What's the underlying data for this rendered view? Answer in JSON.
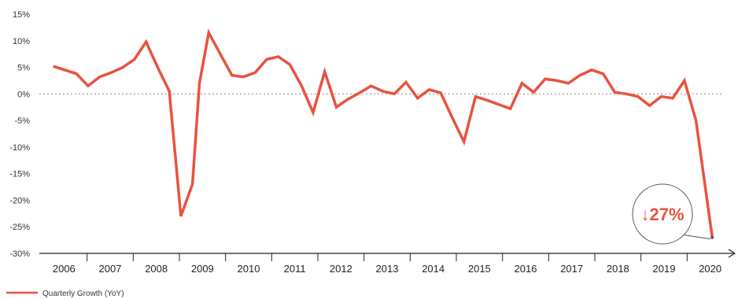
{
  "chart_data": {
    "type": "line",
    "title": "",
    "xlabel": "",
    "ylabel": "",
    "ylim": [
      -30,
      15
    ],
    "y_ticks": [
      15,
      10,
      5,
      0,
      -5,
      -10,
      -15,
      -20,
      -25,
      -30
    ],
    "y_tick_labels": [
      "15%",
      "10%",
      "5%",
      "0%",
      "-5%",
      "-10%",
      "-15%",
      "-20%",
      "-25%",
      "-30%"
    ],
    "x_tick_labels": [
      "2006",
      "2007",
      "2008",
      "2009",
      "2010",
      "2011",
      "2012",
      "2013",
      "2014",
      "2015",
      "2016",
      "2017",
      "2018",
      "2019",
      "2020"
    ],
    "grid": false,
    "zero_line": true,
    "legend_position": "bottom-left",
    "series": [
      {
        "name": "Quarterly Growth (YoY)",
        "color": "#e8533f",
        "points": [
          {
            "x": 2006.0,
            "y": 5.2
          },
          {
            "x": 2006.25,
            "y": 4.5
          },
          {
            "x": 2006.5,
            "y": 3.8
          },
          {
            "x": 2006.75,
            "y": 1.5
          },
          {
            "x": 2007.0,
            "y": 3.2
          },
          {
            "x": 2007.25,
            "y": 4.0
          },
          {
            "x": 2007.5,
            "y": 5.0
          },
          {
            "x": 2007.75,
            "y": 6.5
          },
          {
            "x": 2008.0,
            "y": 9.8
          },
          {
            "x": 2008.25,
            "y": 5.0
          },
          {
            "x": 2008.5,
            "y": 0.5
          },
          {
            "x": 2008.75,
            "y": -23.0
          },
          {
            "x": 2009.0,
            "y": -17.0
          },
          {
            "x": 2009.15,
            "y": 2.0
          },
          {
            "x": 2009.35,
            "y": 11.5
          },
          {
            "x": 2009.6,
            "y": 7.5
          },
          {
            "x": 2009.85,
            "y": 3.5
          },
          {
            "x": 2010.1,
            "y": 3.2
          },
          {
            "x": 2010.35,
            "y": 4.0
          },
          {
            "x": 2010.6,
            "y": 6.5
          },
          {
            "x": 2010.85,
            "y": 7.0
          },
          {
            "x": 2011.1,
            "y": 5.5
          },
          {
            "x": 2011.35,
            "y": 1.5
          },
          {
            "x": 2011.6,
            "y": -3.5
          },
          {
            "x": 2011.85,
            "y": 4.2
          },
          {
            "x": 2012.1,
            "y": -2.5
          },
          {
            "x": 2012.35,
            "y": -1.0
          },
          {
            "x": 2012.6,
            "y": 0.2
          },
          {
            "x": 2012.85,
            "y": 1.5
          },
          {
            "x": 2013.1,
            "y": 0.5
          },
          {
            "x": 2013.35,
            "y": 0.0
          },
          {
            "x": 2013.6,
            "y": 2.2
          },
          {
            "x": 2013.85,
            "y": -0.8
          },
          {
            "x": 2014.1,
            "y": 0.8
          },
          {
            "x": 2014.35,
            "y": 0.2
          },
          {
            "x": 2014.6,
            "y": -4.5
          },
          {
            "x": 2014.85,
            "y": -9.0
          },
          {
            "x": 2015.1,
            "y": -0.5
          },
          {
            "x": 2015.35,
            "y": -1.2
          },
          {
            "x": 2015.6,
            "y": -2.0
          },
          {
            "x": 2015.85,
            "y": -2.8
          },
          {
            "x": 2016.1,
            "y": 2.0
          },
          {
            "x": 2016.35,
            "y": 0.3
          },
          {
            "x": 2016.6,
            "y": 2.8
          },
          {
            "x": 2016.85,
            "y": 2.5
          },
          {
            "x": 2017.1,
            "y": 2.0
          },
          {
            "x": 2017.35,
            "y": 3.5
          },
          {
            "x": 2017.6,
            "y": 4.5
          },
          {
            "x": 2017.85,
            "y": 3.8
          },
          {
            "x": 2018.1,
            "y": 0.3
          },
          {
            "x": 2018.35,
            "y": 0.0
          },
          {
            "x": 2018.6,
            "y": -0.5
          },
          {
            "x": 2018.85,
            "y": -2.2
          },
          {
            "x": 2019.1,
            "y": -0.5
          },
          {
            "x": 2019.35,
            "y": -0.8
          },
          {
            "x": 2019.6,
            "y": 2.5
          },
          {
            "x": 2019.85,
            "y": -5.0
          },
          {
            "x": 2020.2,
            "y": -27.0
          }
        ]
      }
    ],
    "annotations": [
      {
        "text": "↓27%",
        "x": 2020.2,
        "y": -27.0,
        "style": "circle-callout",
        "color": "#e8533f"
      }
    ]
  }
}
